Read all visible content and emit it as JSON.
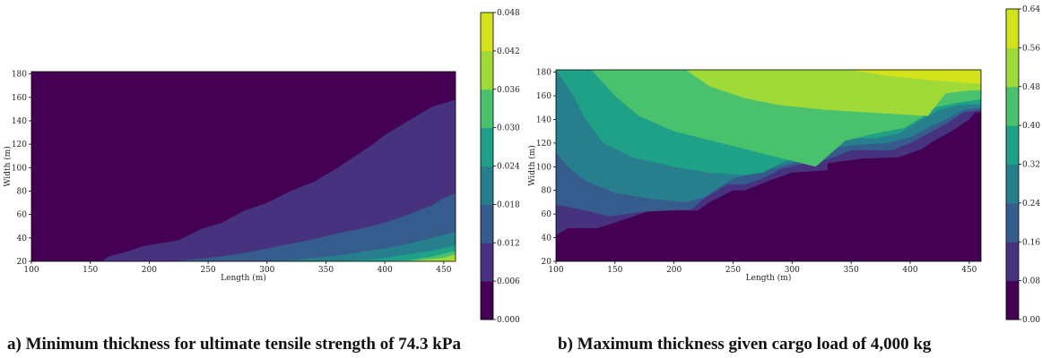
{
  "captions": {
    "a": "a) Minimum thickness for ultimate tensile strength of 74.3 kPa",
    "b": "b) Maximum thickness given cargo load of 4,000 kg"
  },
  "chart_data": [
    {
      "id": "a",
      "type": "contour",
      "xlabel": "Length (m)",
      "ylabel": "Width (m)",
      "xlim": [
        100,
        460
      ],
      "ylim": [
        20,
        182
      ],
      "xticks": [
        100,
        150,
        200,
        250,
        300,
        350,
        400,
        450
      ],
      "yticks": [
        20,
        40,
        60,
        80,
        100,
        120,
        140,
        160,
        180
      ],
      "levels": [
        0.0,
        0.006,
        0.012,
        0.018,
        0.024,
        0.03,
        0.036,
        0.042,
        0.048
      ],
      "colorbar_ticks": [
        "0.000",
        "0.006",
        "0.012",
        "0.018",
        "0.024",
        "0.030",
        "0.036",
        "0.042",
        "0.048"
      ],
      "colors": [
        "#440154",
        "#46327e",
        "#365c8d",
        "#277f8e",
        "#1fa187",
        "#4ac16d",
        "#a0da39",
        "#d2e21b"
      ],
      "boundaries": [
        {
          "band": 1,
          "points": [
            [
              160,
              20
            ],
            [
              165,
              24
            ],
            [
              180,
              28
            ],
            [
              195,
              33
            ],
            [
              225,
              38
            ],
            [
              245,
              48
            ],
            [
              262,
              53
            ],
            [
              280,
              63
            ],
            [
              300,
              70
            ],
            [
              320,
              80
            ],
            [
              340,
              88
            ],
            [
              360,
              100
            ],
            [
              375,
              110
            ],
            [
              390,
              120
            ],
            [
              400,
              128
            ],
            [
              420,
              140
            ],
            [
              440,
              152
            ],
            [
              460,
              158
            ]
          ]
        },
        {
          "band": 2,
          "points": [
            [
              220,
              20
            ],
            [
              240,
              22
            ],
            [
              260,
              24
            ],
            [
              280,
              27
            ],
            [
              300,
              31
            ],
            [
              320,
              35
            ],
            [
              340,
              39
            ],
            [
              360,
              44
            ],
            [
              380,
              48
            ],
            [
              400,
              53
            ],
            [
              420,
              60
            ],
            [
              440,
              68
            ],
            [
              450,
              74
            ],
            [
              460,
              78
            ]
          ]
        },
        {
          "band": 3,
          "points": [
            [
              300,
              20
            ],
            [
              320,
              21
            ],
            [
              340,
              23
            ],
            [
              360,
              25
            ],
            [
              380,
              28
            ],
            [
              400,
              31
            ],
            [
              420,
              35
            ],
            [
              440,
              40
            ],
            [
              460,
              45
            ]
          ]
        },
        {
          "band": 4,
          "points": [
            [
              360,
              20
            ],
            [
              380,
              21
            ],
            [
              400,
              23
            ],
            [
              420,
              26
            ],
            [
              440,
              29
            ],
            [
              460,
              34
            ]
          ]
        },
        {
          "band": 5,
          "points": [
            [
              400,
              20
            ],
            [
              420,
              21
            ],
            [
              440,
              24
            ],
            [
              460,
              29
            ]
          ]
        },
        {
          "band": 6,
          "points": [
            [
              420,
              20
            ],
            [
              440,
              22
            ],
            [
              450,
              23
            ],
            [
              460,
              26
            ]
          ]
        },
        {
          "band": 7,
          "points": [
            [
              445,
              20
            ],
            [
              455,
              21
            ],
            [
              460,
              22
            ]
          ]
        }
      ]
    },
    {
      "id": "b",
      "type": "contour",
      "xlabel": "Length (m)",
      "ylabel": "Width (m)",
      "xlim": [
        100,
        460
      ],
      "ylim": [
        20,
        182
      ],
      "xticks": [
        100,
        150,
        200,
        250,
        300,
        350,
        400,
        450
      ],
      "yticks": [
        20,
        40,
        60,
        80,
        100,
        120,
        140,
        160,
        180
      ],
      "levels": [
        0.0,
        0.08,
        0.16,
        0.24,
        0.32,
        0.4,
        0.48,
        0.56,
        0.64
      ],
      "colorbar_ticks": [
        "0.00",
        "0.08",
        "0.16",
        "0.24",
        "0.32",
        "0.40",
        "0.48",
        "0.56",
        "0.64"
      ],
      "colors": [
        "#440154",
        "#46327e",
        "#365c8d",
        "#277f8e",
        "#1fa187",
        "#4ac16d",
        "#a0da39",
        "#d2e21b"
      ],
      "boundaries": [
        {
          "band": 1,
          "points": [
            [
              100,
              42
            ],
            [
              110,
              48
            ],
            [
              135,
              48
            ],
            [
              160,
              56
            ],
            [
              180,
              63
            ],
            [
              220,
              63
            ],
            [
              230,
              70
            ],
            [
              250,
              80
            ],
            [
              260,
              80
            ],
            [
              280,
              88
            ],
            [
              300,
              95
            ],
            [
              330,
              97
            ],
            [
              330,
              103
            ],
            [
              360,
              107
            ],
            [
              390,
              108
            ],
            [
              410,
              115
            ],
            [
              420,
              122
            ],
            [
              435,
              130
            ],
            [
              450,
              140
            ],
            [
              455,
              146
            ],
            [
              460,
              146
            ]
          ]
        },
        {
          "band": 2,
          "points": [
            [
              100,
              68
            ],
            [
              125,
              63
            ],
            [
              145,
              58
            ],
            [
              175,
              62
            ],
            [
              215,
              64
            ],
            [
              225,
              73
            ],
            [
              245,
              85
            ],
            [
              260,
              85
            ],
            [
              275,
              90
            ],
            [
              290,
              98
            ],
            [
              315,
              104
            ],
            [
              330,
              106
            ],
            [
              350,
              114
            ],
            [
              385,
              114
            ],
            [
              400,
              120
            ],
            [
              415,
              128
            ],
            [
              430,
              136
            ],
            [
              445,
              146
            ],
            [
              460,
              148
            ]
          ]
        },
        {
          "band": 3,
          "points": [
            [
              100,
              112
            ],
            [
              110,
              100
            ],
            [
              125,
              88
            ],
            [
              150,
              78
            ],
            [
              180,
              73
            ],
            [
              210,
              70
            ],
            [
              225,
              74
            ],
            [
              250,
              90
            ],
            [
              270,
              95
            ],
            [
              290,
              100
            ],
            [
              310,
              106
            ],
            [
              330,
              115
            ],
            [
              350,
              118
            ],
            [
              380,
              120
            ],
            [
              400,
              125
            ],
            [
              415,
              133
            ],
            [
              430,
              140
            ],
            [
              445,
              148
            ],
            [
              460,
              150
            ]
          ]
        },
        {
          "band": 4,
          "points": [
            [
              100,
              182
            ],
            [
              115,
              160
            ],
            [
              125,
              140
            ],
            [
              140,
              120
            ],
            [
              165,
              108
            ],
            [
              200,
              100
            ],
            [
              230,
              95
            ],
            [
              260,
              93
            ],
            [
              275,
              95
            ],
            [
              290,
              103
            ],
            [
              305,
              108
            ],
            [
              320,
              117
            ],
            [
              335,
              124
            ],
            [
              370,
              124
            ],
            [
              390,
              128
            ],
            [
              410,
              140
            ],
            [
              425,
              148
            ],
            [
              440,
              152
            ],
            [
              460,
              153
            ]
          ]
        },
        {
          "band": 5,
          "points": [
            [
              130,
              182
            ],
            [
              150,
              160
            ],
            [
              170,
              143
            ],
            [
              200,
              130
            ],
            [
              240,
              120
            ],
            [
              280,
              110
            ],
            [
              320,
              100
            ],
            [
              345,
              122
            ],
            [
              370,
              128
            ],
            [
              395,
              133
            ],
            [
              410,
              142
            ],
            [
              420,
              150
            ],
            [
              440,
              154
            ],
            [
              460,
              157
            ]
          ]
        },
        {
          "band": 6,
          "points": [
            [
              210,
              182
            ],
            [
              230,
              168
            ],
            [
              260,
              158
            ],
            [
              290,
              152
            ],
            [
              330,
              148
            ],
            [
              380,
              145
            ],
            [
              415,
              143
            ],
            [
              430,
              162
            ],
            [
              445,
              164
            ],
            [
              460,
              165
            ]
          ]
        },
        {
          "band": 7,
          "points": [
            [
              350,
              182
            ],
            [
              380,
              177
            ],
            [
              420,
              173
            ],
            [
              460,
              170
            ]
          ]
        }
      ]
    }
  ]
}
